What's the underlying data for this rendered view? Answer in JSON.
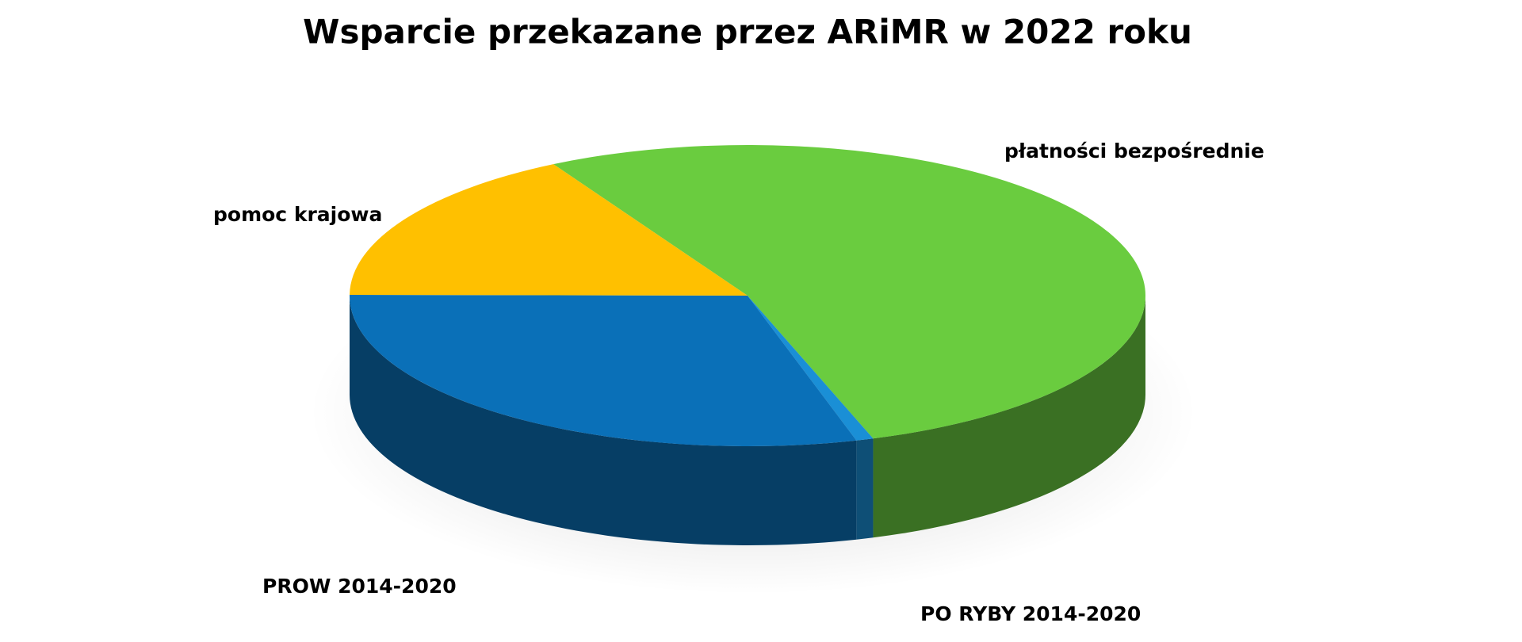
{
  "chart_data": {
    "type": "pie",
    "title": "Wsparcie przekazane przez ARiMR w 2022 roku",
    "categories": [
      "płatności bezpośrednie",
      "PO RYBY 2014-2020",
      "PROW 2014-2020",
      "pomoc krajowa"
    ],
    "values": [
      53,
      0.7,
      29.5,
      16.8
    ],
    "colors": [
      "#6acc3f",
      "#1a8fd6",
      "#0a70b8",
      "#ffc000"
    ]
  }
}
